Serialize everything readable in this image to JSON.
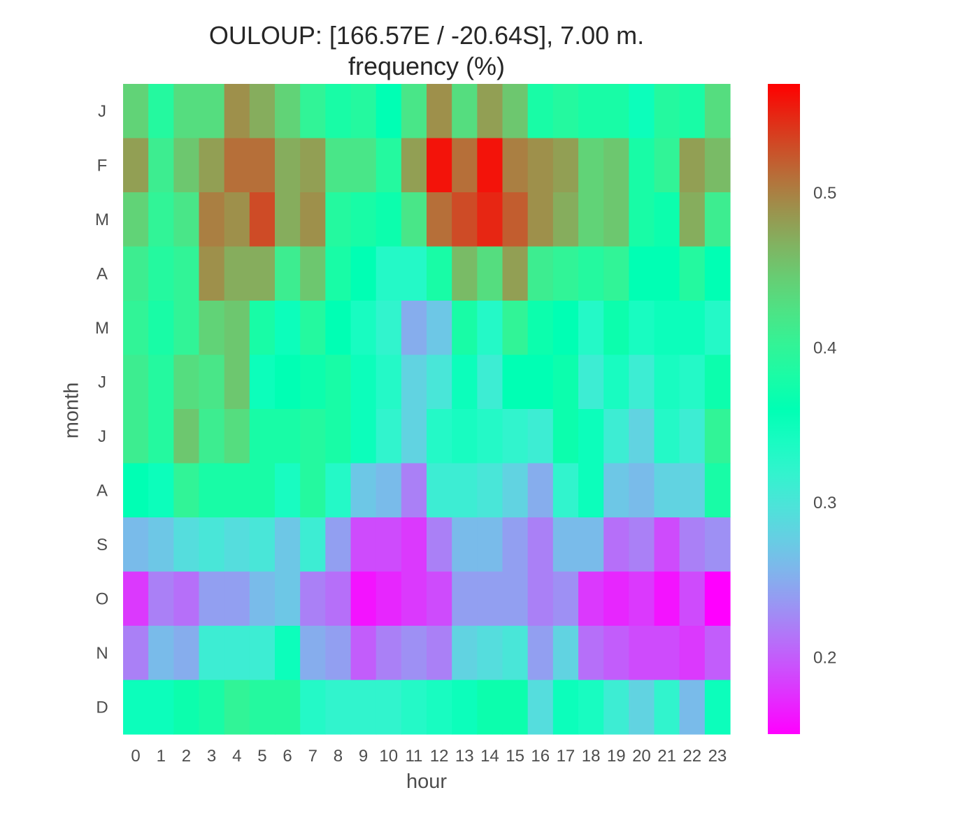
{
  "chart_data": {
    "type": "heatmap",
    "title": "OULOUP: [166.57E / -20.64S], 7.00 m.",
    "subtitle": "frequency (%)",
    "xlabel": "hour",
    "ylabel": "month",
    "x_categories": [
      "0",
      "1",
      "2",
      "3",
      "4",
      "5",
      "6",
      "7",
      "8",
      "9",
      "10",
      "11",
      "12",
      "13",
      "14",
      "15",
      "16",
      "17",
      "18",
      "19",
      "20",
      "21",
      "22",
      "23"
    ],
    "y_categories": [
      "J",
      "F",
      "M",
      "A",
      "M",
      "J",
      "J",
      "A",
      "S",
      "O",
      "N",
      "D"
    ],
    "values": [
      [
        0.44,
        0.39,
        0.43,
        0.43,
        0.49,
        0.47,
        0.44,
        0.4,
        0.38,
        0.39,
        0.36,
        0.42,
        0.49,
        0.43,
        0.48,
        0.45,
        0.38,
        0.39,
        0.38,
        0.38,
        0.35,
        0.39,
        0.38,
        0.43
      ],
      [
        0.48,
        0.41,
        0.45,
        0.48,
        0.51,
        0.51,
        0.47,
        0.48,
        0.42,
        0.42,
        0.39,
        0.48,
        0.56,
        0.51,
        0.56,
        0.5,
        0.49,
        0.48,
        0.44,
        0.45,
        0.38,
        0.4,
        0.48,
        0.46
      ],
      [
        0.44,
        0.4,
        0.42,
        0.5,
        0.49,
        0.53,
        0.47,
        0.49,
        0.39,
        0.38,
        0.37,
        0.42,
        0.51,
        0.53,
        0.55,
        0.52,
        0.49,
        0.47,
        0.44,
        0.45,
        0.38,
        0.37,
        0.47,
        0.41
      ],
      [
        0.41,
        0.39,
        0.4,
        0.49,
        0.47,
        0.47,
        0.41,
        0.45,
        0.38,
        0.36,
        0.33,
        0.33,
        0.38,
        0.46,
        0.43,
        0.48,
        0.41,
        0.4,
        0.39,
        0.4,
        0.36,
        0.36,
        0.39,
        0.36
      ],
      [
        0.4,
        0.38,
        0.4,
        0.44,
        0.45,
        0.38,
        0.35,
        0.39,
        0.36,
        0.34,
        0.32,
        0.25,
        0.27,
        0.38,
        0.33,
        0.4,
        0.37,
        0.36,
        0.33,
        0.37,
        0.34,
        0.35,
        0.35,
        0.33
      ],
      [
        0.41,
        0.39,
        0.43,
        0.42,
        0.45,
        0.35,
        0.36,
        0.37,
        0.38,
        0.35,
        0.33,
        0.28,
        0.3,
        0.35,
        0.31,
        0.36,
        0.36,
        0.37,
        0.31,
        0.34,
        0.31,
        0.34,
        0.33,
        0.37
      ],
      [
        0.41,
        0.39,
        0.45,
        0.41,
        0.43,
        0.38,
        0.38,
        0.39,
        0.38,
        0.35,
        0.32,
        0.28,
        0.33,
        0.34,
        0.33,
        0.32,
        0.31,
        0.37,
        0.35,
        0.31,
        0.28,
        0.33,
        0.31,
        0.4
      ],
      [
        0.36,
        0.35,
        0.4,
        0.38,
        0.38,
        0.38,
        0.34,
        0.39,
        0.33,
        0.27,
        0.26,
        0.22,
        0.31,
        0.31,
        0.3,
        0.28,
        0.25,
        0.32,
        0.35,
        0.27,
        0.26,
        0.28,
        0.28,
        0.38
      ],
      [
        0.26,
        0.27,
        0.29,
        0.3,
        0.29,
        0.3,
        0.27,
        0.31,
        0.24,
        0.19,
        0.19,
        0.18,
        0.22,
        0.26,
        0.26,
        0.24,
        0.22,
        0.26,
        0.26,
        0.21,
        0.22,
        0.19,
        0.22,
        0.23
      ],
      [
        0.18,
        0.22,
        0.21,
        0.24,
        0.24,
        0.26,
        0.27,
        0.22,
        0.21,
        0.16,
        0.17,
        0.18,
        0.19,
        0.24,
        0.24,
        0.24,
        0.22,
        0.23,
        0.18,
        0.17,
        0.18,
        0.16,
        0.19,
        0.15
      ],
      [
        0.22,
        0.26,
        0.25,
        0.31,
        0.31,
        0.31,
        0.35,
        0.25,
        0.24,
        0.2,
        0.22,
        0.23,
        0.22,
        0.28,
        0.29,
        0.3,
        0.24,
        0.28,
        0.21,
        0.2,
        0.19,
        0.19,
        0.18,
        0.2
      ],
      [
        0.35,
        0.35,
        0.37,
        0.38,
        0.4,
        0.39,
        0.39,
        0.33,
        0.32,
        0.32,
        0.32,
        0.33,
        0.34,
        0.35,
        0.37,
        0.37,
        0.29,
        0.35,
        0.34,
        0.31,
        0.28,
        0.32,
        0.26,
        0.35
      ]
    ],
    "colorbar": {
      "vmin": 0.15,
      "vmax": 0.57,
      "ticks": [
        0.2,
        0.3,
        0.4,
        0.5
      ],
      "tick_labels": [
        "0.2",
        "0.3",
        "0.4",
        "0.5"
      ],
      "colormap": "rainbow"
    },
    "grid": false
  }
}
